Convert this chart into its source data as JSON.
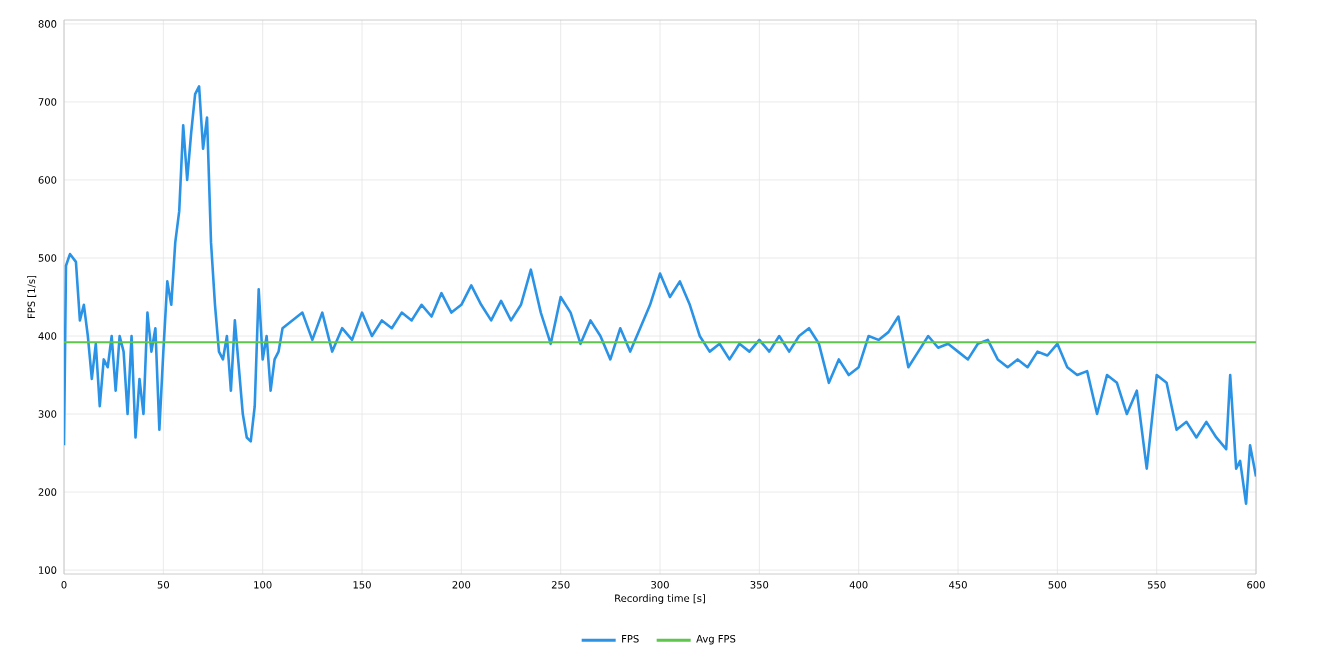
{
  "chart_data": {
    "type": "line",
    "xlabel": "Recording time [s]",
    "ylabel": "FPS [1/s]",
    "xlim": [
      0,
      600
    ],
    "ylim": [
      95,
      805
    ],
    "xticks": [
      0,
      50,
      100,
      150,
      200,
      250,
      300,
      350,
      400,
      450,
      500,
      550,
      600
    ],
    "yticks": [
      100,
      200,
      300,
      400,
      500,
      600,
      700,
      800
    ],
    "grid": true,
    "legend": "bottom",
    "marker": "none",
    "line_style": "solid",
    "series": [
      {
        "name": "FPS",
        "color": "#2b93e6",
        "x": [
          0,
          1,
          3,
          6,
          8,
          10,
          12,
          14,
          16,
          18,
          20,
          22,
          24,
          26,
          28,
          30,
          32,
          34,
          36,
          38,
          40,
          42,
          44,
          46,
          48,
          50,
          52,
          54,
          56,
          58,
          60,
          62,
          64,
          66,
          68,
          70,
          72,
          74,
          76,
          78,
          80,
          82,
          84,
          86,
          88,
          90,
          92,
          94,
          96,
          98,
          100,
          102,
          104,
          106,
          108,
          110,
          115,
          120,
          125,
          130,
          135,
          140,
          145,
          150,
          155,
          160,
          165,
          170,
          175,
          180,
          185,
          190,
          195,
          200,
          205,
          210,
          215,
          220,
          225,
          230,
          235,
          240,
          245,
          250,
          255,
          260,
          265,
          270,
          275,
          280,
          285,
          290,
          295,
          300,
          305,
          310,
          315,
          320,
          325,
          330,
          335,
          340,
          345,
          350,
          355,
          360,
          365,
          370,
          375,
          380,
          385,
          390,
          395,
          400,
          405,
          410,
          415,
          420,
          425,
          430,
          435,
          440,
          445,
          450,
          455,
          460,
          465,
          470,
          475,
          480,
          485,
          490,
          495,
          500,
          505,
          510,
          515,
          520,
          525,
          530,
          535,
          540,
          545,
          550,
          555,
          560,
          565,
          570,
          575,
          580,
          585,
          587,
          590,
          592,
          595,
          597,
          600
        ],
        "values": [
          260,
          490,
          505,
          495,
          420,
          440,
          400,
          345,
          390,
          310,
          370,
          360,
          400,
          330,
          400,
          380,
          300,
          400,
          270,
          345,
          300,
          430,
          380,
          410,
          280,
          380,
          470,
          440,
          520,
          560,
          670,
          600,
          660,
          710,
          720,
          640,
          680,
          520,
          440,
          380,
          370,
          400,
          330,
          420,
          360,
          300,
          270,
          265,
          310,
          460,
          370,
          400,
          330,
          370,
          380,
          410,
          420,
          430,
          395,
          430,
          380,
          410,
          395,
          430,
          400,
          420,
          410,
          430,
          420,
          440,
          425,
          455,
          430,
          440,
          465,
          440,
          420,
          445,
          420,
          440,
          485,
          430,
          390,
          450,
          430,
          390,
          420,
          400,
          370,
          410,
          380,
          410,
          440,
          480,
          450,
          470,
          440,
          400,
          380,
          390,
          370,
          390,
          380,
          395,
          380,
          400,
          380,
          400,
          410,
          390,
          340,
          370,
          350,
          360,
          400,
          395,
          405,
          425,
          360,
          380,
          400,
          385,
          390,
          380,
          370,
          390,
          395,
          370,
          360,
          370,
          360,
          380,
          375,
          390,
          360,
          350,
          355,
          300,
          350,
          340,
          300,
          330,
          230,
          350,
          340,
          280,
          290,
          270,
          290,
          270,
          255,
          350,
          230,
          240,
          185,
          260,
          220
        ]
      },
      {
        "name": "Avg FPS",
        "color": "#5cc74a",
        "x": [
          0,
          600
        ],
        "values": [
          392,
          392
        ]
      }
    ]
  }
}
